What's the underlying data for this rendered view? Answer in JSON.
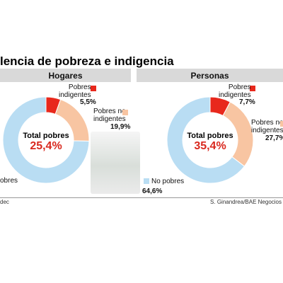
{
  "title": "lencia de pobreza e indigencia",
  "footer": {
    "source": "dec",
    "credit": "S. Ginandrea/BAE Negocios"
  },
  "colors": {
    "indigentes": "#e8281c",
    "no_indigentes": "#f8c5a2",
    "no_pobres": "#b9ddf3"
  },
  "panels": [
    {
      "header": "Hogares",
      "center_title": "Total pobres",
      "center_value": "25,4%",
      "labels": {
        "indigentes": "Pobres\nindigentes",
        "indigentes_pct": "5,5%",
        "no_indigentes": "Pobres no\nindigentes",
        "no_indigentes_pct": "19,9%",
        "no_pobres": "obres"
      }
    },
    {
      "header": "Personas",
      "center_title": "Total pobres",
      "center_value": "35,4%",
      "labels": {
        "indigentes": "Pobres\nindigentes",
        "indigentes_pct": "7,7%",
        "no_indigentes": "Pobres no\nindigentes",
        "no_indigentes_pct": "27,7%",
        "no_pobres": "No pobres",
        "no_pobres_pct": "64,6%"
      }
    }
  ],
  "chart_data": [
    {
      "type": "pie",
      "title": "Hogares",
      "categories": [
        "Pobres indigentes",
        "Pobres no indigentes",
        "No pobres"
      ],
      "values": [
        5.5,
        19.9,
        74.6
      ]
    },
    {
      "type": "pie",
      "title": "Personas",
      "categories": [
        "Pobres indigentes",
        "Pobres no indigentes",
        "No pobres"
      ],
      "values": [
        7.7,
        27.7,
        64.6
      ]
    }
  ]
}
